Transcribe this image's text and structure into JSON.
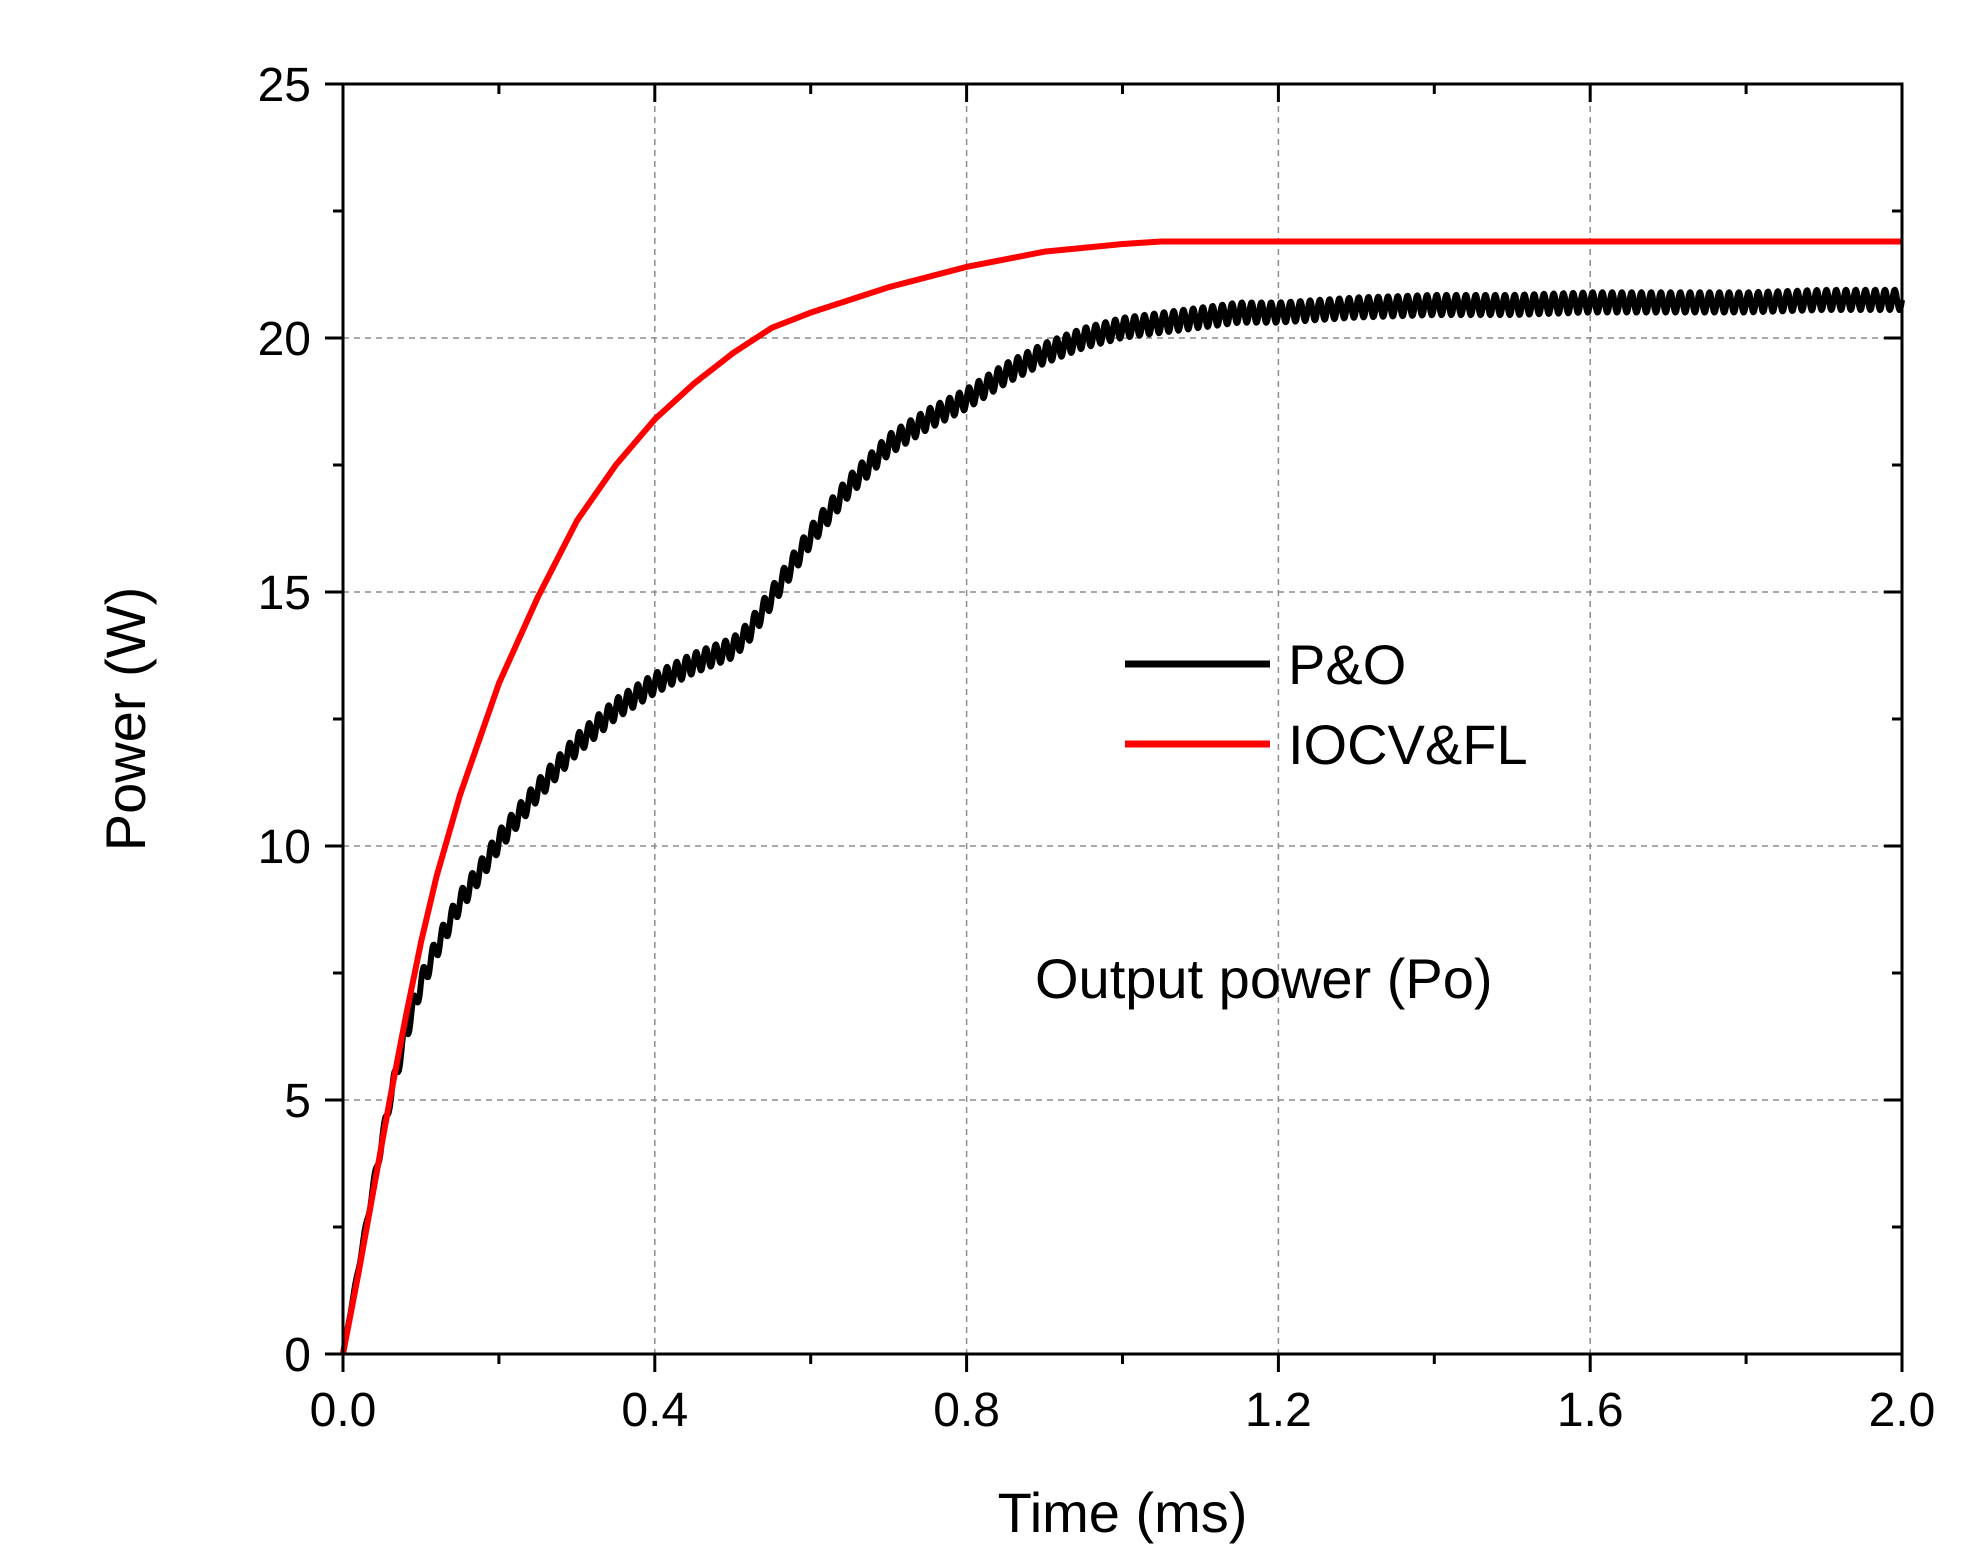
{
  "chart_data": {
    "type": "line",
    "title": "",
    "xlabel": "Time (ms)",
    "ylabel": "Power (W)",
    "xlim": [
      0,
      2.0
    ],
    "ylim": [
      0,
      25
    ],
    "x_ticks": [
      "0.0",
      "0.4",
      "0.8",
      "1.2",
      "1.6",
      "2.0"
    ],
    "x_tick_values": [
      0,
      0.4,
      0.8,
      1.2,
      1.6,
      2.0
    ],
    "y_ticks": [
      "0",
      "5",
      "10",
      "15",
      "20",
      "25"
    ],
    "y_tick_values": [
      0,
      5,
      10,
      15,
      20,
      25
    ],
    "grid": true,
    "legend_position": "center-right",
    "annotation": "Output power (Po)",
    "series": [
      {
        "name": "P&O",
        "color": "#000000",
        "x": [
          0,
          0.02,
          0.04,
          0.06,
          0.08,
          0.1,
          0.12,
          0.15,
          0.18,
          0.2,
          0.25,
          0.3,
          0.35,
          0.4,
          0.45,
          0.5,
          0.52,
          0.55,
          0.6,
          0.65,
          0.7,
          0.75,
          0.8,
          0.85,
          0.9,
          0.95,
          1.0,
          1.05,
          1.1,
          1.15,
          1.2,
          1.3,
          1.4,
          1.5,
          1.6,
          1.7,
          1.8,
          1.9,
          2.0
        ],
        "y": [
          0,
          1.7,
          3.4,
          5.0,
          6.3,
          7.3,
          8.0,
          8.9,
          9.6,
          10.1,
          11.1,
          12.0,
          12.7,
          13.2,
          13.6,
          13.9,
          14.2,
          14.9,
          16.1,
          17.1,
          17.9,
          18.4,
          18.8,
          19.3,
          19.7,
          20.0,
          20.2,
          20.3,
          20.4,
          20.5,
          20.5,
          20.6,
          20.65,
          20.65,
          20.7,
          20.7,
          20.7,
          20.75,
          20.75
        ],
        "oscillation": 0.2
      },
      {
        "name": "IOCV&FL",
        "color": "#ff0000",
        "x": [
          0,
          0.02,
          0.04,
          0.06,
          0.08,
          0.1,
          0.12,
          0.15,
          0.2,
          0.25,
          0.3,
          0.35,
          0.4,
          0.45,
          0.5,
          0.55,
          0.6,
          0.7,
          0.8,
          0.9,
          1.0,
          1.05,
          1.1,
          1.2,
          1.4,
          1.6,
          1.8,
          2.0
        ],
        "y": [
          0,
          1.6,
          3.3,
          5.0,
          6.6,
          8.1,
          9.4,
          11.0,
          13.2,
          14.9,
          16.4,
          17.5,
          18.4,
          19.1,
          19.7,
          20.2,
          20.5,
          21.0,
          21.4,
          21.7,
          21.85,
          21.9,
          21.9,
          21.9,
          21.9,
          21.9,
          21.9,
          21.9
        ],
        "oscillation": 0.3
      }
    ]
  }
}
